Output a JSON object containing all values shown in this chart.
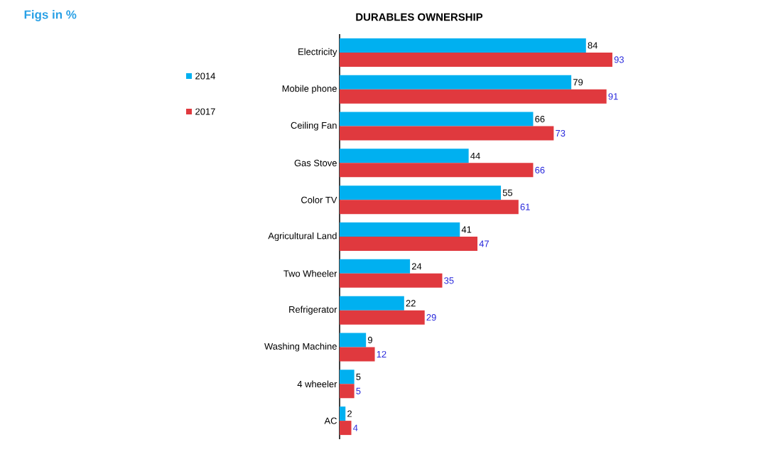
{
  "chart_data": {
    "type": "bar",
    "orientation": "horizontal",
    "title": "DURABLES OWNERSHIP",
    "annotations": [
      "Figs in %"
    ],
    "categories": [
      "Electricity",
      "Mobile phone",
      "Ceiling Fan",
      "Gas Stove",
      "Color TV",
      "Agricultural Land",
      "Two Wheeler",
      "Refrigerator",
      "Washing Machine",
      "4 wheeler",
      "AC"
    ],
    "series": [
      {
        "name": "2014",
        "color": "#00b0f0",
        "values": [
          84,
          79,
          66,
          44,
          55,
          41,
          24,
          22,
          9,
          5,
          2
        ]
      },
      {
        "name": "2017",
        "color": "#e0393e",
        "values": [
          93,
          91,
          73,
          66,
          61,
          47,
          35,
          29,
          12,
          5,
          4
        ]
      }
    ],
    "data_labels": true,
    "legend": "top left"
  }
}
